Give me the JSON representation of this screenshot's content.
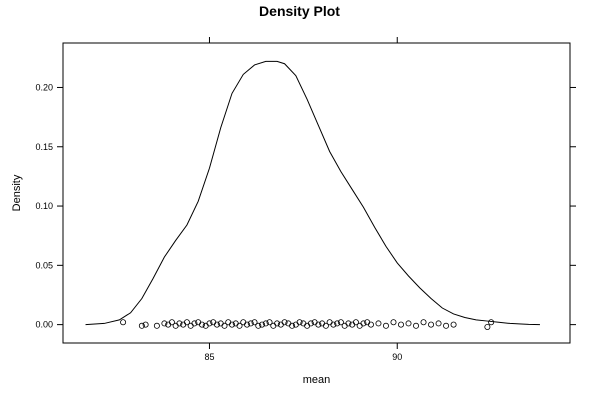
{
  "chart_data": {
    "type": "line",
    "title": "Density Plot",
    "xlabel": "mean",
    "ylabel": "Density",
    "xlim": [
      81.1,
      94.6
    ],
    "ylim": [
      -0.0155,
      0.2375
    ],
    "x_ticks": [
      85,
      90
    ],
    "x_tick_labels": [
      "85",
      "90"
    ],
    "y_ticks": [
      0,
      0.05,
      0.1,
      0.15,
      0.2
    ],
    "y_tick_labels": [
      "0.00",
      "0.05",
      "0.10",
      "0.15",
      "0.20"
    ],
    "grid": false,
    "series": [
      {
        "values_x": [
          81.7,
          82.2,
          82.6,
          82.9,
          83.2,
          83.5,
          83.8,
          84.1,
          84.4,
          84.7,
          85.0,
          85.3,
          85.6,
          85.9,
          86.2,
          86.5,
          86.8,
          87.0,
          87.3,
          87.6,
          87.9,
          88.2,
          88.5,
          88.8,
          89.1,
          89.4,
          89.7,
          90.0,
          90.3,
          90.6,
          90.9,
          91.2,
          91.5,
          91.8,
          92.1,
          92.4,
          92.7,
          93.0,
          93.3,
          93.5,
          93.8
        ],
        "values_y": [
          0.0,
          0.001,
          0.004,
          0.01,
          0.022,
          0.039,
          0.057,
          0.071,
          0.084,
          0.104,
          0.132,
          0.166,
          0.195,
          0.211,
          0.219,
          0.222,
          0.222,
          0.22,
          0.21,
          0.19,
          0.168,
          0.146,
          0.129,
          0.114,
          0.099,
          0.082,
          0.066,
          0.052,
          0.041,
          0.031,
          0.022,
          0.014,
          0.009,
          0.006,
          0.004,
          0.003,
          0.002,
          0.001,
          0.0005,
          0.0002,
          0.0
        ]
      }
    ],
    "rug": {
      "x": [
        82.7,
        83.2,
        83.3,
        83.6,
        83.8,
        83.9,
        84.0,
        84.1,
        84.2,
        84.3,
        84.4,
        84.5,
        84.6,
        84.7,
        84.8,
        84.9,
        85.0,
        85.1,
        85.2,
        85.3,
        85.4,
        85.5,
        85.6,
        85.7,
        85.8,
        85.9,
        86.0,
        86.1,
        86.2,
        86.3,
        86.4,
        86.5,
        86.6,
        86.7,
        86.8,
        86.9,
        87.0,
        87.1,
        87.2,
        87.3,
        87.4,
        87.5,
        87.6,
        87.7,
        87.8,
        87.9,
        88.0,
        88.1,
        88.2,
        88.3,
        88.4,
        88.5,
        88.6,
        88.7,
        88.8,
        88.9,
        89.0,
        89.1,
        89.2,
        89.3,
        89.5,
        89.7,
        89.9,
        90.1,
        90.3,
        90.5,
        90.7,
        90.9,
        91.1,
        91.3,
        91.5,
        92.4,
        92.5
      ],
      "jitter": [
        0.002,
        -0.001,
        0.0,
        -0.001,
        0.001,
        0.0,
        0.002,
        -0.001,
        0.001,
        0.0,
        0.002,
        -0.001,
        0.001,
        0.002,
        0.0,
        -0.001,
        0.001,
        0.002,
        0.0,
        0.001,
        -0.001,
        0.002,
        0.0,
        0.001,
        -0.001,
        0.002,
        0.0,
        0.001,
        0.002,
        -0.001,
        0.0,
        0.001,
        0.002,
        -0.001,
        0.001,
        0.0,
        0.002,
        0.001,
        -0.001,
        0.0,
        0.002,
        0.001,
        -0.001,
        0.001,
        0.002,
        0.0,
        0.001,
        -0.001,
        0.002,
        0.0,
        0.001,
        0.002,
        -0.001,
        0.001,
        0.0,
        0.002,
        -0.001,
        0.001,
        0.002,
        0.0,
        0.001,
        -0.001,
        0.002,
        0.0,
        0.001,
        -0.001,
        0.002,
        0.0,
        0.001,
        -0.001,
        0.0,
        -0.002,
        0.002
      ]
    }
  }
}
